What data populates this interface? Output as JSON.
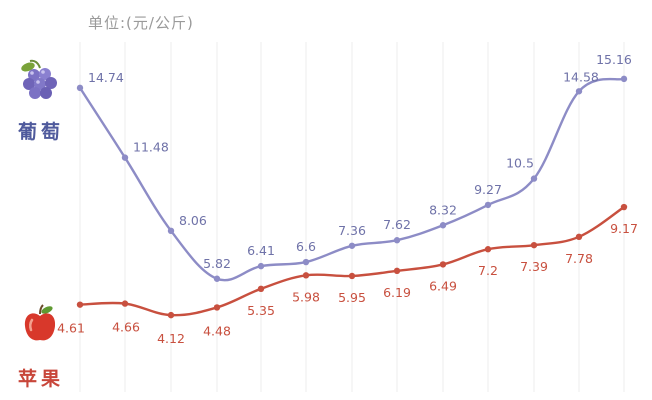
{
  "unit_label": "单位:(元/公斤)",
  "series_labels": {
    "grape": "葡萄",
    "apple": "苹果"
  },
  "icons": {
    "grape": "grape-icon",
    "apple": "apple-icon"
  },
  "colors": {
    "grape_line": "#8d8cc6",
    "grape_text": "#6f72a8",
    "apple_line": "#c8503f",
    "apple_text": "#c8503f",
    "grid": "#eeeeee"
  },
  "chart_data": {
    "type": "line",
    "x": [
      1,
      2,
      3,
      4,
      5,
      6,
      7,
      8,
      9,
      10,
      11,
      12,
      13
    ],
    "series": [
      {
        "name": "葡萄",
        "values": [
          14.74,
          11.48,
          8.06,
          5.82,
          6.41,
          6.6,
          7.36,
          7.62,
          8.32,
          9.27,
          10.5,
          14.58,
          15.16
        ]
      },
      {
        "name": "苹果",
        "values": [
          4.61,
          4.66,
          4.12,
          4.48,
          5.35,
          5.98,
          5.95,
          6.19,
          6.49,
          7.2,
          7.39,
          7.78,
          9.17
        ]
      }
    ],
    "ylabel": "单位:(元/公斤)",
    "grid": true,
    "legend": "left"
  }
}
